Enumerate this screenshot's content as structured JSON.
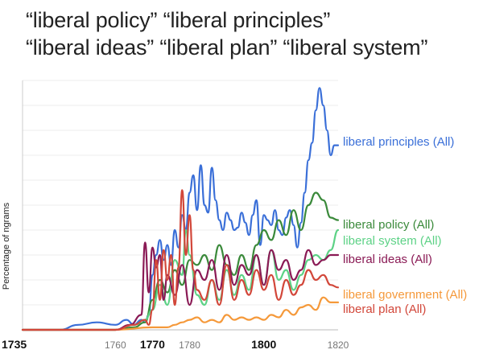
{
  "header": {
    "line1": "“liberal policy”  “liberal principles”",
    "line2": "“liberal ideas” “liberal plan” “liberal system”"
  },
  "chart_data": {
    "type": "line",
    "title": "",
    "xlabel": "",
    "ylabel": "Percentage of ngrams",
    "xlim": [
      1735,
      1820
    ],
    "ylim": [
      0,
      100
    ],
    "y_units": "relative",
    "grid": true,
    "legend_placement": "right, at series line ends",
    "x_ticks": [
      {
        "value": 1735,
        "label": "1735",
        "emphasis": true
      },
      {
        "value": 1760,
        "label": "1760",
        "emphasis": false
      },
      {
        "value": 1770,
        "label": "1770",
        "emphasis": true
      },
      {
        "value": 1780,
        "label": "1780",
        "emphasis": false
      },
      {
        "value": 1800,
        "label": "1800",
        "emphasis": true
      },
      {
        "value": 1820,
        "label": "1820",
        "emphasis": false
      }
    ],
    "series": [
      {
        "name": "liberal principles (All)",
        "color": "#3a6fd8",
        "x": [
          1735,
          1745,
          1750,
          1755,
          1760,
          1763,
          1765,
          1767,
          1768,
          1769,
          1770,
          1771,
          1772,
          1773,
          1774,
          1775,
          1776,
          1777,
          1778,
          1779,
          1780,
          1781,
          1782,
          1783,
          1784,
          1785,
          1786,
          1787,
          1788,
          1789,
          1790,
          1791,
          1792,
          1793,
          1794,
          1795,
          1796,
          1797,
          1798,
          1799,
          1800,
          1801,
          1802,
          1803,
          1804,
          1805,
          1806,
          1807,
          1808,
          1809,
          1810,
          1811,
          1812,
          1813,
          1814,
          1815,
          1816,
          1817,
          1818,
          1819,
          1820
        ],
        "y": [
          0,
          0,
          2,
          3,
          2,
          4,
          2,
          4,
          3,
          6,
          22,
          30,
          36,
          28,
          34,
          26,
          40,
          33,
          46,
          40,
          55,
          62,
          48,
          66,
          50,
          47,
          65,
          52,
          44,
          40,
          47,
          44,
          40,
          41,
          47,
          43,
          38,
          46,
          52,
          34,
          46,
          44,
          42,
          48,
          40,
          38,
          45,
          48,
          42,
          33,
          43,
          55,
          68,
          75,
          88,
          97,
          90,
          80,
          70,
          74,
          74
        ]
      },
      {
        "name": "liberal policy (All)",
        "color": "#3b8a3b",
        "x": [
          1735,
          1760,
          1765,
          1768,
          1770,
          1772,
          1774,
          1776,
          1778,
          1780,
          1782,
          1784,
          1786,
          1788,
          1790,
          1792,
          1794,
          1796,
          1798,
          1800,
          1802,
          1804,
          1806,
          1808,
          1810,
          1812,
          1814,
          1816,
          1818,
          1820
        ],
        "y": [
          0,
          0,
          1,
          3,
          12,
          20,
          15,
          24,
          18,
          28,
          26,
          30,
          24,
          34,
          26,
          22,
          30,
          24,
          34,
          40,
          36,
          44,
          38,
          48,
          40,
          50,
          55,
          52,
          45,
          44
        ]
      },
      {
        "name": "liberal system (All)",
        "color": "#5dd286",
        "x": [
          1735,
          1760,
          1765,
          1768,
          1770,
          1772,
          1774,
          1776,
          1778,
          1779,
          1780,
          1782,
          1784,
          1786,
          1788,
          1790,
          1792,
          1794,
          1796,
          1798,
          1800,
          1802,
          1804,
          1806,
          1808,
          1810,
          1812,
          1814,
          1816,
          1818,
          1820
        ],
        "y": [
          0,
          0,
          2,
          4,
          8,
          18,
          10,
          28,
          22,
          40,
          30,
          14,
          10,
          20,
          12,
          24,
          14,
          22,
          16,
          30,
          18,
          32,
          20,
          24,
          16,
          22,
          28,
          30,
          28,
          32,
          40
        ]
      },
      {
        "name": "liberal ideas (All)",
        "color": "#8a1a55",
        "x": [
          1735,
          1760,
          1764,
          1767,
          1768,
          1769,
          1770,
          1771,
          1772,
          1773,
          1774,
          1776,
          1778,
          1780,
          1782,
          1784,
          1786,
          1788,
          1790,
          1792,
          1794,
          1796,
          1798,
          1800,
          1802,
          1804,
          1806,
          1808,
          1810,
          1812,
          1814,
          1816,
          1818,
          1820
        ],
        "y": [
          0,
          0,
          2,
          6,
          35,
          15,
          33,
          25,
          30,
          12,
          22,
          14,
          26,
          10,
          24,
          20,
          28,
          16,
          30,
          18,
          26,
          22,
          30,
          18,
          32,
          24,
          28,
          20,
          24,
          32,
          26,
          28,
          30,
          30
        ]
      },
      {
        "name": "liberal government (All)",
        "color": "#f5993a",
        "x": [
          1735,
          1760,
          1770,
          1774,
          1776,
          1778,
          1780,
          1782,
          1784,
          1786,
          1788,
          1790,
          1792,
          1794,
          1796,
          1798,
          1800,
          1802,
          1804,
          1806,
          1808,
          1810,
          1812,
          1814,
          1816,
          1818,
          1820
        ],
        "y": [
          0,
          0,
          1,
          1,
          2,
          3,
          4,
          5,
          3,
          4,
          3,
          6,
          4,
          5,
          4,
          5,
          4,
          6,
          5,
          8,
          6,
          9,
          10,
          8,
          13,
          11,
          11
        ]
      },
      {
        "name": "liberal plan (All)",
        "color": "#d2473a",
        "x": [
          1735,
          1760,
          1765,
          1768,
          1769,
          1770,
          1771,
          1772,
          1773,
          1774,
          1775,
          1776,
          1777,
          1778,
          1779,
          1780,
          1781,
          1782,
          1784,
          1786,
          1788,
          1790,
          1792,
          1794,
          1796,
          1798,
          1800,
          1802,
          1804,
          1806,
          1808,
          1810,
          1812,
          1814,
          1816,
          1818,
          1820
        ],
        "y": [
          0,
          0,
          2,
          4,
          2,
          8,
          28,
          12,
          32,
          20,
          30,
          10,
          25,
          56,
          30,
          46,
          24,
          16,
          12,
          20,
          10,
          26,
          12,
          20,
          14,
          24,
          16,
          22,
          12,
          20,
          14,
          18,
          24,
          20,
          22,
          18,
          17
        ]
      }
    ]
  }
}
